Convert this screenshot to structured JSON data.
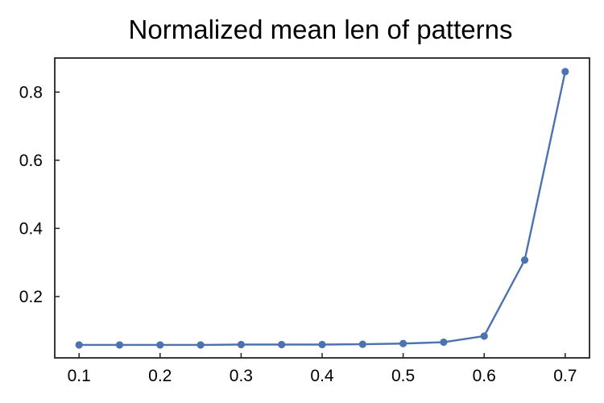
{
  "chart_data": {
    "type": "line",
    "title": "Normalized mean len of patterns",
    "xlabel": "",
    "ylabel": "",
    "x": [
      0.1,
      0.15,
      0.2,
      0.25,
      0.3,
      0.35,
      0.4,
      0.45,
      0.5,
      0.55,
      0.6,
      0.65,
      0.7
    ],
    "series": [
      {
        "values": [
          0.058,
          0.058,
          0.058,
          0.058,
          0.059,
          0.059,
          0.059,
          0.06,
          0.062,
          0.066,
          0.084,
          0.307,
          0.86
        ],
        "color": "#4c72b0",
        "marker": "circle"
      }
    ],
    "xlim": [
      0.07,
      0.73
    ],
    "ylim": [
      0.02,
      0.9
    ],
    "x_ticks": [
      "0.1",
      "0.2",
      "0.3",
      "0.4",
      "0.5",
      "0.6",
      "0.7"
    ],
    "y_ticks": [
      "0.2",
      "0.4",
      "0.6",
      "0.8"
    ],
    "grid": false,
    "legend": "none"
  }
}
